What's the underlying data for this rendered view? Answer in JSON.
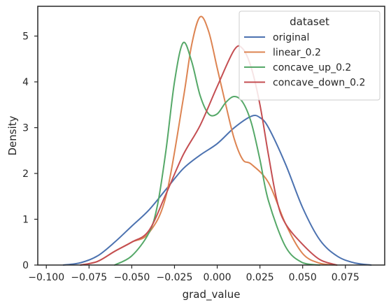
{
  "chart_data": {
    "type": "line",
    "title": "",
    "xlabel": "grad_value",
    "ylabel": "Density",
    "xlim": [
      -0.105,
      0.098
    ],
    "ylim": [
      0,
      5.65
    ],
    "x_ticks": [
      -0.1,
      -0.075,
      -0.05,
      -0.025,
      0.0,
      0.025,
      0.05,
      0.075
    ],
    "x_tick_labels": [
      "−0.100",
      "−0.075",
      "−0.050",
      "−0.025",
      "0.000",
      "0.025",
      "0.050",
      "0.075"
    ],
    "y_ticks": [
      0,
      1,
      2,
      3,
      4,
      5
    ],
    "y_tick_labels": [
      "0",
      "1",
      "2",
      "3",
      "4",
      "5"
    ],
    "grid": false,
    "legend": {
      "title": "dataset",
      "placement": "top-right"
    },
    "series": [
      {
        "name": "original",
        "color": "#4c72b0",
        "x": [
          -0.09,
          -0.08,
          -0.07,
          -0.06,
          -0.05,
          -0.04,
          -0.03,
          -0.02,
          -0.01,
          0.0,
          0.01,
          0.02,
          0.025,
          0.03,
          0.04,
          0.05,
          0.06,
          0.07,
          0.08,
          0.09
        ],
        "y": [
          0.0,
          0.05,
          0.2,
          0.5,
          0.85,
          1.2,
          1.65,
          2.1,
          2.4,
          2.65,
          3.0,
          3.25,
          3.22,
          3.0,
          2.2,
          1.25,
          0.55,
          0.2,
          0.05,
          0.0
        ]
      },
      {
        "name": "linear_0.2",
        "color": "#dd8452",
        "x": [
          -0.08,
          -0.07,
          -0.06,
          -0.05,
          -0.04,
          -0.03,
          -0.02,
          -0.015,
          -0.01,
          -0.005,
          0.0,
          0.005,
          0.01,
          0.015,
          0.02,
          0.03,
          0.04,
          0.05,
          0.06,
          0.07
        ],
        "y": [
          0.0,
          0.08,
          0.3,
          0.5,
          0.7,
          1.5,
          3.6,
          4.8,
          5.42,
          5.1,
          4.3,
          3.5,
          2.75,
          2.3,
          2.2,
          1.8,
          0.9,
          0.25,
          0.04,
          0.0
        ]
      },
      {
        "name": "concave_up_0.2",
        "color": "#55a868",
        "x": [
          -0.06,
          -0.05,
          -0.04,
          -0.035,
          -0.03,
          -0.025,
          -0.02,
          -0.015,
          -0.01,
          -0.005,
          0.0,
          0.005,
          0.01,
          0.015,
          0.02,
          0.025,
          0.03,
          0.04,
          0.05,
          0.06
        ],
        "y": [
          0.0,
          0.2,
          0.7,
          1.3,
          2.5,
          4.0,
          4.85,
          4.45,
          3.7,
          3.3,
          3.3,
          3.55,
          3.68,
          3.55,
          3.1,
          2.3,
          1.4,
          0.4,
          0.05,
          0.0
        ]
      },
      {
        "name": "concave_down_0.2",
        "color": "#c44e52",
        "x": [
          -0.08,
          -0.07,
          -0.06,
          -0.05,
          -0.04,
          -0.03,
          -0.02,
          -0.01,
          0.0,
          0.01,
          0.015,
          0.02,
          0.025,
          0.03,
          0.035,
          0.04,
          0.05,
          0.06,
          0.07
        ],
        "y": [
          0.0,
          0.08,
          0.3,
          0.5,
          0.75,
          1.55,
          2.4,
          3.05,
          3.9,
          4.7,
          4.72,
          4.3,
          3.5,
          2.4,
          1.4,
          0.9,
          0.45,
          0.12,
          0.0
        ]
      }
    ]
  }
}
